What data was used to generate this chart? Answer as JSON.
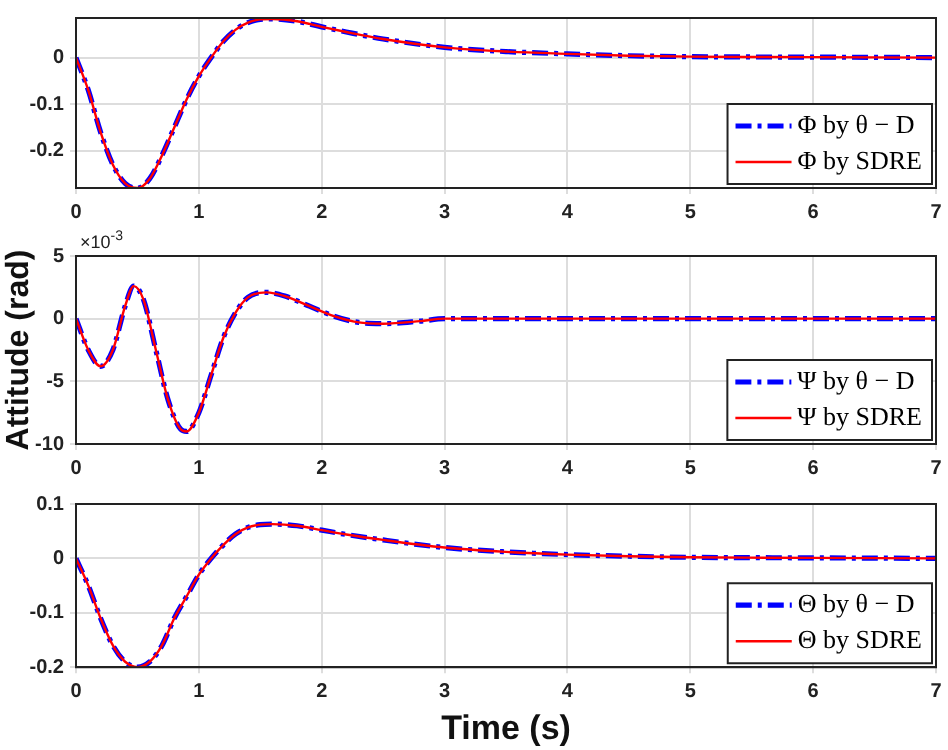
{
  "chart_data": [
    {
      "type": "line",
      "x": [
        0,
        0.1,
        0.2,
        0.3,
        0.4,
        0.5,
        0.6,
        0.7,
        0.8,
        0.9,
        1.0,
        1.1,
        1.2,
        1.3,
        1.4,
        1.5,
        1.6,
        1.8,
        2.0,
        2.2,
        2.5,
        3.0,
        3.5,
        4.0,
        4.5,
        5.0,
        6.0,
        7.0
      ],
      "series": [
        {
          "name": "Φ by θ − D",
          "color": "#0000ff",
          "line_style": "dashed",
          "values": [
            0,
            -0.07,
            -0.16,
            -0.23,
            -0.27,
            -0.28,
            -0.26,
            -0.21,
            -0.15,
            -0.09,
            -0.04,
            0.0,
            0.035,
            0.06,
            0.075,
            0.082,
            0.083,
            0.078,
            0.066,
            0.055,
            0.04,
            0.022,
            0.013,
            0.008,
            0.004,
            0.002,
            0.001,
            0
          ]
        },
        {
          "name": "Φ by SDRE",
          "color": "#ff0000",
          "line_style": "solid",
          "values": [
            0,
            -0.07,
            -0.16,
            -0.23,
            -0.27,
            -0.28,
            -0.26,
            -0.21,
            -0.15,
            -0.09,
            -0.04,
            0.0,
            0.035,
            0.06,
            0.075,
            0.082,
            0.083,
            0.078,
            0.066,
            0.055,
            0.04,
            0.022,
            0.013,
            0.008,
            0.004,
            0.002,
            0.001,
            0
          ]
        }
      ],
      "xlim": [
        0,
        7
      ],
      "xticks": [
        0,
        1,
        2,
        3,
        4,
        5,
        6,
        7
      ],
      "ylim": [
        -0.28,
        0.085
      ],
      "yticks": [
        -0.2,
        -0.1,
        0
      ],
      "grid": true,
      "legend": "bottom right"
    },
    {
      "type": "line",
      "x": [
        0,
        0.1,
        0.2,
        0.3,
        0.4,
        0.47,
        0.55,
        0.65,
        0.75,
        0.85,
        0.9,
        1.0,
        1.1,
        1.2,
        1.3,
        1.4,
        1.55,
        1.7,
        1.9,
        2.1,
        2.3,
        2.5,
        2.8,
        3.0,
        4.0,
        5.0,
        6.0,
        7.0
      ],
      "series": [
        {
          "name": "Ψ by θ − D",
          "color": "#0000ff",
          "line_style": "dashed",
          "values": [
            0,
            -2.5,
            -3.8,
            -2.5,
            1.0,
            2.6,
            1.5,
            -2.5,
            -6.5,
            -8.8,
            -9.0,
            -7.5,
            -4.5,
            -1.5,
            0.5,
            1.7,
            2.1,
            1.8,
            1.0,
            0.2,
            -0.3,
            -0.4,
            -0.2,
            0,
            0,
            0,
            0,
            0
          ]
        },
        {
          "name": "Ψ by SDRE",
          "color": "#ff0000",
          "line_style": "solid",
          "values": [
            0,
            -2.5,
            -3.8,
            -2.5,
            1.0,
            2.6,
            1.5,
            -2.5,
            -6.5,
            -8.8,
            -9.0,
            -7.5,
            -4.5,
            -1.5,
            0.5,
            1.7,
            2.1,
            1.8,
            1.0,
            0.2,
            -0.3,
            -0.4,
            -0.2,
            0,
            0,
            0,
            0,
            0
          ]
        }
      ],
      "xlim": [
        0,
        7
      ],
      "xticks": [
        0,
        1,
        2,
        3,
        4,
        5,
        6,
        7
      ],
      "ylim": [
        -10,
        5
      ],
      "yticks": [
        -10,
        -5,
        0,
        5
      ],
      "ylabel": "Attitude (rad)",
      "annotations": [
        "×10$^{-3}$"
      ],
      "grid": true,
      "legend": "bottom right"
    },
    {
      "type": "line",
      "x": [
        0,
        0.1,
        0.2,
        0.3,
        0.4,
        0.5,
        0.6,
        0.7,
        0.8,
        0.9,
        1.0,
        1.1,
        1.2,
        1.3,
        1.4,
        1.5,
        1.6,
        1.8,
        2.0,
        2.2,
        2.5,
        3.0,
        3.5,
        4.0,
        4.5,
        5.0,
        6.0,
        7.0
      ],
      "series": [
        {
          "name": "Θ by θ − D",
          "color": "#0000ff",
          "line_style": "dashed",
          "values": [
            0,
            -0.05,
            -0.11,
            -0.16,
            -0.19,
            -0.2,
            -0.19,
            -0.16,
            -0.11,
            -0.07,
            -0.03,
            0.0,
            0.025,
            0.045,
            0.057,
            0.062,
            0.063,
            0.06,
            0.052,
            0.044,
            0.034,
            0.02,
            0.012,
            0.007,
            0.004,
            0.002,
            0.001,
            0
          ]
        },
        {
          "name": "Θ by SDRE",
          "color": "#ff0000",
          "line_style": "solid",
          "values": [
            0,
            -0.05,
            -0.11,
            -0.16,
            -0.19,
            -0.2,
            -0.19,
            -0.16,
            -0.11,
            -0.07,
            -0.03,
            0.0,
            0.025,
            0.045,
            0.057,
            0.062,
            0.063,
            0.06,
            0.052,
            0.044,
            0.034,
            0.02,
            0.012,
            0.007,
            0.004,
            0.002,
            0.001,
            0
          ]
        }
      ],
      "xlim": [
        0,
        7
      ],
      "xticks": [
        0,
        1,
        2,
        3,
        4,
        5,
        6,
        7
      ],
      "ylim": [
        -0.2,
        0.1
      ],
      "yticks": [
        -0.2,
        -0.1,
        0,
        0.1
      ],
      "xlabel": "Time (s)",
      "grid": true,
      "legend": "bottom right"
    }
  ]
}
